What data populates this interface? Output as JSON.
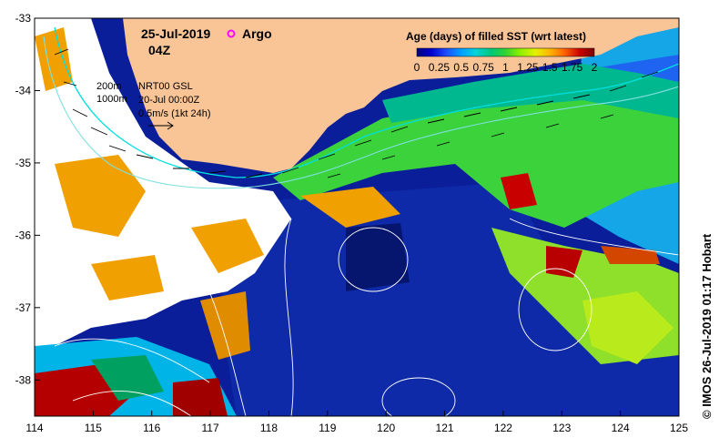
{
  "header": {
    "date": "25-Jul-2019",
    "time": "04Z",
    "argo_label": "Argo"
  },
  "legend": {
    "title": "Age (days) of filled SST (wrt latest)",
    "ticks": [
      "0",
      "0.25",
      "0.5",
      "0.75",
      "1",
      "1.25",
      "1.5",
      "1.75",
      "2"
    ],
    "colors": [
      "#000080",
      "#0000cd",
      "#1e50ff",
      "#00a0ff",
      "#00d2dc",
      "#00c878",
      "#32d232",
      "#8cf000",
      "#e6f000",
      "#ffb400",
      "#ff6400",
      "#c80000",
      "#780000"
    ]
  },
  "annotations": {
    "isobath_200": "200m",
    "isobath_1000": "1000m",
    "model": "NRT00 GSL",
    "model_time": "20-Jul 00:00Z",
    "scale_label": "0.5m/s (1kt 24h)"
  },
  "axes": {
    "x_ticks": [
      "114",
      "115",
      "116",
      "117",
      "118",
      "119",
      "120",
      "121",
      "122",
      "123",
      "124",
      "125"
    ],
    "y_ticks": [
      "-33",
      "-34",
      "-35",
      "-36",
      "-37",
      "-38"
    ],
    "lon_range": [
      114,
      125
    ],
    "lat_range": [
      -38.5,
      -33
    ]
  },
  "credit": "© IMOS 26-Jul-2019 01:17 Hobart",
  "colors": {
    "land": "#f9c597",
    "no_data": "#ffffff",
    "contour": "#ffffff",
    "isobath_200": "#00e0e0",
    "isobath_1000": "#7fe0e0",
    "argo": "#ff00ff"
  }
}
